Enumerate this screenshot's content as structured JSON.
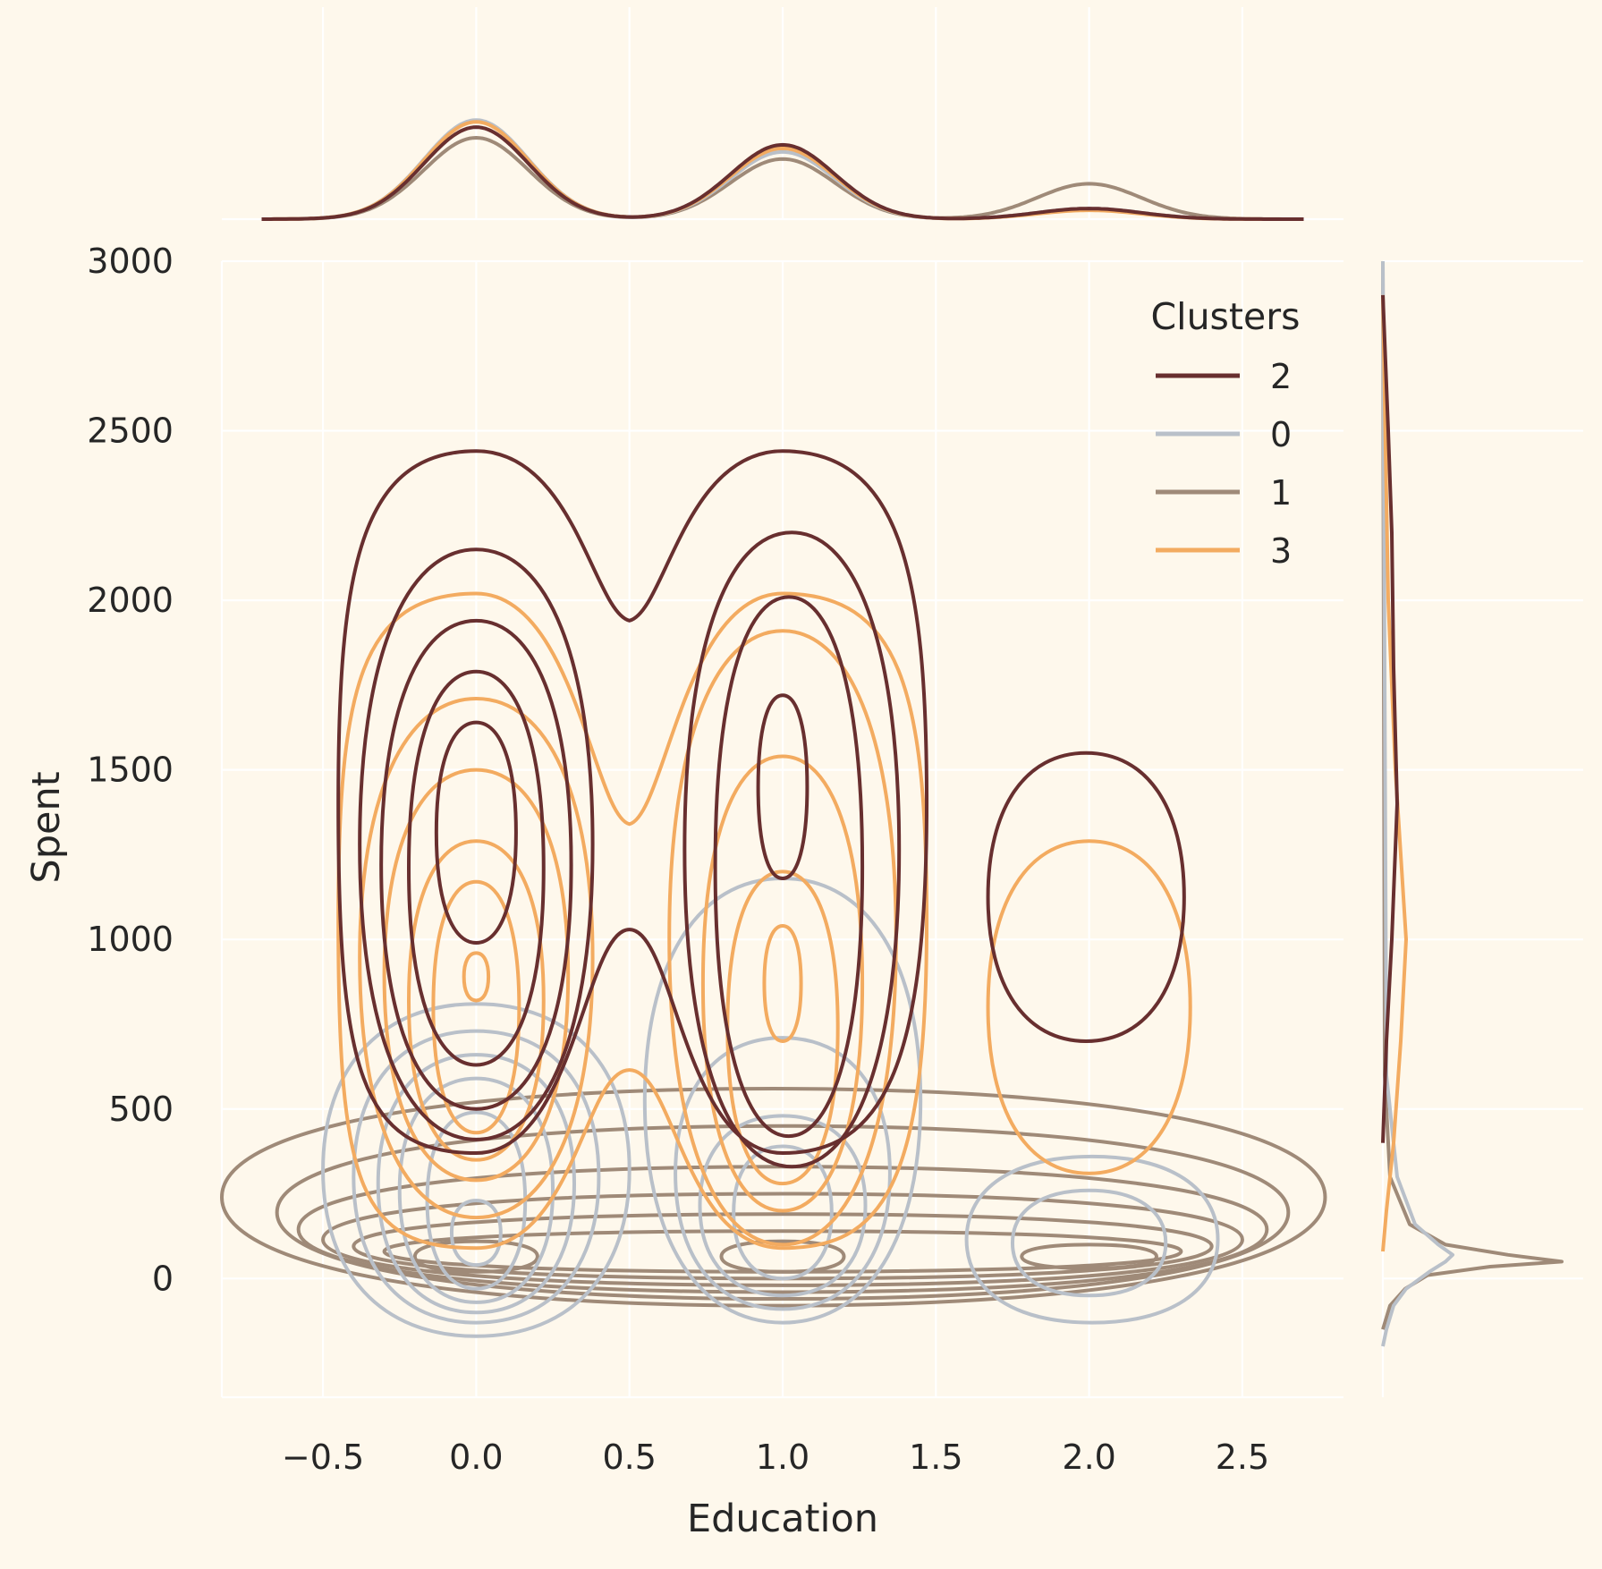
{
  "chart_data": {
    "type": "kde-joint",
    "xlabel": "Education",
    "ylabel": "Spent",
    "xlim": [
      -0.83,
      2.83
    ],
    "ylim": [
      -350,
      3000
    ],
    "xticks": [
      -0.5,
      0.0,
      0.5,
      1.0,
      1.5,
      2.0,
      2.5
    ],
    "xtick_labels": [
      "−0.5",
      "0.0",
      "0.5",
      "1.0",
      "1.5",
      "2.0",
      "2.5"
    ],
    "yticks": [
      0,
      500,
      1000,
      1500,
      2000,
      2500,
      3000
    ],
    "ytick_labels": [
      "0",
      "500",
      "1000",
      "1500",
      "2000",
      "2500",
      "3000"
    ],
    "grid": true,
    "background": "#FEF8EC",
    "legend": {
      "title": "Clusters",
      "placement": "top-right",
      "entries": [
        "2",
        "0",
        "1",
        "3"
      ]
    },
    "series": [
      {
        "name": "2",
        "color": "#682F2F",
        "education_weights": [
          0.52,
          0.42,
          0.06
        ],
        "contours": [
          {
            "shape": "peanut",
            "x": [
              -0.45,
              1.47
            ],
            "y": [
              370,
              2440
            ],
            "waist_y": 1940
          },
          {
            "shape": "oval",
            "cx": 0.0,
            "x": [
              -0.38,
              0.38
            ],
            "y": [
              410,
              2150
            ]
          },
          {
            "shape": "oval",
            "cx": 0.0,
            "x": [
              -0.31,
              0.31
            ],
            "y": [
              500,
              1940
            ]
          },
          {
            "shape": "oval",
            "cx": 0.0,
            "x": [
              -0.22,
              0.22
            ],
            "y": [
              630,
              1790
            ]
          },
          {
            "shape": "oval",
            "cx": 0.0,
            "x": [
              -0.13,
              0.13
            ],
            "y": [
              990,
              1640
            ]
          },
          {
            "shape": "oval",
            "cx": 1.0,
            "x": [
              -0.32,
              0.38
            ],
            "y": [
              330,
              2200
            ]
          },
          {
            "shape": "oval",
            "cx": 1.0,
            "x": [
              -0.22,
              0.26
            ],
            "y": [
              420,
              2010
            ]
          },
          {
            "shape": "oval",
            "cx": 1.0,
            "x": [
              -0.08,
              0.08
            ],
            "y": [
              1180,
              1720
            ]
          },
          {
            "shape": "oval",
            "cx": 2.0,
            "x": [
              -0.33,
              0.31
            ],
            "y": [
              700,
              1550
            ]
          }
        ]
      },
      {
        "name": "0",
        "color": "#B9C0C9",
        "education_weights": [
          0.56,
          0.38,
          0.06
        ],
        "contours": [
          {
            "shape": "oval",
            "cx": 0.0,
            "x": [
              -0.5,
              0.5
            ],
            "y": [
              -170,
              810
            ]
          },
          {
            "shape": "oval",
            "cx": 0.0,
            "x": [
              -0.4,
              0.4
            ],
            "y": [
              -130,
              730
            ]
          },
          {
            "shape": "oval",
            "cx": 0.0,
            "x": [
              -0.32,
              0.32
            ],
            "y": [
              -100,
              660
            ]
          },
          {
            "shape": "oval",
            "cx": 0.0,
            "x": [
              -0.25,
              0.25
            ],
            "y": [
              -70,
              590
            ]
          },
          {
            "shape": "oval",
            "cx": 0.0,
            "x": [
              -0.16,
              0.16
            ],
            "y": [
              -30,
              490
            ]
          },
          {
            "shape": "oval",
            "cx": 0.0,
            "x": [
              -0.08,
              0.08
            ],
            "y": [
              40,
              230
            ]
          },
          {
            "shape": "oval",
            "cx": 1.0,
            "x": [
              -0.45,
              0.45
            ],
            "y": [
              -130,
              1180
            ]
          },
          {
            "shape": "oval",
            "cx": 1.0,
            "x": [
              -0.35,
              0.35
            ],
            "y": [
              -90,
              710
            ]
          },
          {
            "shape": "oval",
            "cx": 1.0,
            "x": [
              -0.27,
              0.27
            ],
            "y": [
              -50,
              480
            ]
          },
          {
            "shape": "oval",
            "cx": 1.0,
            "x": [
              -0.16,
              0.16
            ],
            "y": [
              0,
              390
            ]
          },
          {
            "shape": "oval",
            "cx": 2.0,
            "x": [
              -0.4,
              0.42
            ],
            "y": [
              -130,
              360
            ]
          },
          {
            "shape": "oval",
            "cx": 2.0,
            "x": [
              -0.25,
              0.25
            ],
            "y": [
              -50,
              260
            ]
          }
        ]
      },
      {
        "name": "1",
        "color": "#9F8A78",
        "education_weights": [
          0.46,
          0.34,
          0.2
        ],
        "contours": [
          {
            "shape": "oval",
            "cx": 1.0,
            "x": [
              -1.83,
              1.77
            ],
            "y": [
              -80,
              560
            ]
          },
          {
            "shape": "oval",
            "cx": 1.0,
            "x": [
              -1.65,
              1.65
            ],
            "y": [
              -60,
              450
            ]
          },
          {
            "shape": "oval",
            "cx": 1.0,
            "x": [
              -1.58,
              1.58
            ],
            "y": [
              -40,
              330
            ]
          },
          {
            "shape": "oval",
            "cx": 1.0,
            "x": [
              -1.5,
              1.5
            ],
            "y": [
              -20,
              250
            ]
          },
          {
            "shape": "oval",
            "cx": 1.0,
            "x": [
              -1.4,
              1.4
            ],
            "y": [
              0,
              190
            ]
          },
          {
            "shape": "oval",
            "cx": 1.0,
            "x": [
              -1.3,
              1.3
            ],
            "y": [
              20,
              140
            ]
          },
          {
            "shape": "oval",
            "cx": 0.0,
            "x": [
              -0.2,
              0.2
            ],
            "y": [
              20,
              110
            ]
          },
          {
            "shape": "oval",
            "cx": 1.0,
            "x": [
              -0.2,
              0.2
            ],
            "y": [
              20,
              110
            ]
          },
          {
            "shape": "oval",
            "cx": 2.0,
            "x": [
              -0.22,
              0.22
            ],
            "y": [
              30,
              100
            ]
          }
        ]
      },
      {
        "name": "3",
        "color": "#F3AB60",
        "education_weights": [
          0.55,
          0.4,
          0.05
        ],
        "contours": [
          {
            "shape": "peanut",
            "x": [
              -0.45,
              1.47
            ],
            "y": [
              90,
              2020
            ],
            "waist_y": 1340
          },
          {
            "shape": "oval",
            "cx": 0.0,
            "x": [
              -0.38,
              0.38
            ],
            "y": [
              180,
              1710
            ]
          },
          {
            "shape": "oval",
            "cx": 0.0,
            "x": [
              -0.3,
              0.3
            ],
            "y": [
              290,
              1500
            ]
          },
          {
            "shape": "oval",
            "cx": 0.0,
            "x": [
              -0.22,
              0.22
            ],
            "y": [
              350,
              1290
            ]
          },
          {
            "shape": "oval",
            "cx": 0.0,
            "x": [
              -0.14,
              0.14
            ],
            "y": [
              430,
              1170
            ]
          },
          {
            "shape": "oval",
            "cx": 0.0,
            "x": [
              -0.04,
              0.04
            ],
            "y": [
              820,
              960
            ]
          },
          {
            "shape": "oval",
            "cx": 1.0,
            "x": [
              -0.37,
              0.37
            ],
            "y": [
              100,
              1910
            ]
          },
          {
            "shape": "oval",
            "cx": 1.0,
            "x": [
              -0.26,
              0.26
            ],
            "y": [
              200,
              1540
            ]
          },
          {
            "shape": "oval",
            "cx": 1.0,
            "x": [
              -0.18,
              0.18
            ],
            "y": [
              280,
              1200
            ]
          },
          {
            "shape": "oval",
            "cx": 1.0,
            "x": [
              -0.06,
              0.06
            ],
            "y": [
              700,
              1040
            ]
          },
          {
            "shape": "oval",
            "cx": 2.0,
            "x": [
              -0.33,
              0.33
            ],
            "y": [
              310,
              1290
            ]
          }
        ]
      }
    ],
    "marginal_y_peaks": [
      {
        "name": "1",
        "peak_y": 50,
        "peak_density": 1.0
      },
      {
        "name": "0",
        "peak_y": 70,
        "peak_density": 0.43
      }
    ]
  }
}
